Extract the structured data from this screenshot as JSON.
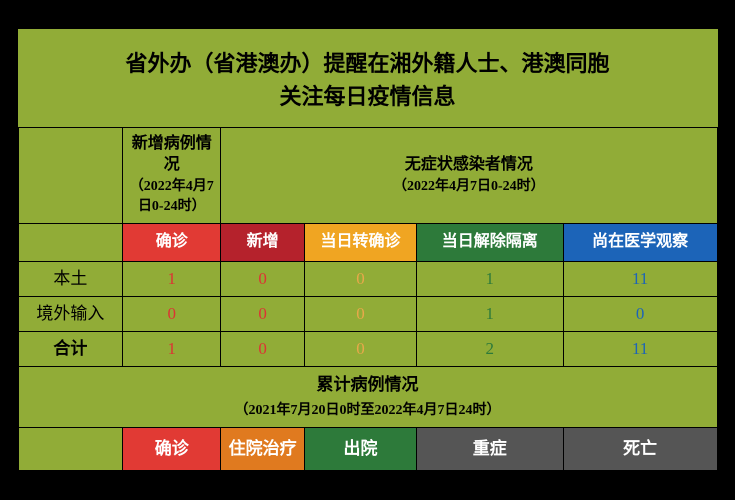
{
  "title_line1": "省外办（省港澳办）提醒在湘外籍人士、港澳同胞",
  "title_line2": "关注每日疫情信息",
  "group_headers": {
    "new_cases": {
      "title": "新增病例情况",
      "period": "（2022年4月7日0-24时）"
    },
    "asymptomatic": {
      "title": "无症状感染者情况",
      "period": "（2022年4月7日0-24时）"
    }
  },
  "columns": {
    "confirmed": {
      "label": "确诊",
      "bg": "#e13a34"
    },
    "new": {
      "label": "新增",
      "bg": "#b5222c"
    },
    "to_confirmed": {
      "label": "当日转确诊",
      "bg": "#f0a522"
    },
    "released": {
      "label": "当日解除隔离",
      "bg": "#2d7a3a"
    },
    "observation": {
      "label": "尚在医学观察",
      "bg": "#1c64b8"
    }
  },
  "rows": [
    {
      "label": "本土",
      "bold": false,
      "cells": [
        {
          "v": "1",
          "c": "#d33"
        },
        {
          "v": "0",
          "c": "#d33"
        },
        {
          "v": "0",
          "c": "#e8a84a"
        },
        {
          "v": "1",
          "c": "#2d7a3a"
        },
        {
          "v": "11",
          "c": "#1c64b8"
        }
      ]
    },
    {
      "label": "境外输入",
      "bold": false,
      "cells": [
        {
          "v": "0",
          "c": "#d33"
        },
        {
          "v": "0",
          "c": "#d33"
        },
        {
          "v": "0",
          "c": "#e8a84a"
        },
        {
          "v": "1",
          "c": "#2d7a3a"
        },
        {
          "v": "0",
          "c": "#1c64b8"
        }
      ]
    },
    {
      "label": "合计",
      "bold": true,
      "cells": [
        {
          "v": "1",
          "c": "#d33"
        },
        {
          "v": "0",
          "c": "#d33"
        },
        {
          "v": "0",
          "c": "#e8a84a"
        },
        {
          "v": "2",
          "c": "#2d7a3a"
        },
        {
          "v": "11",
          "c": "#1c64b8"
        }
      ]
    }
  ],
  "cumulative": {
    "title": "累计病例情况",
    "period": "（2021年7月20日0时至2022年4月7日24时）",
    "columns": [
      {
        "label": "确诊",
        "bg": "#e13a34"
      },
      {
        "label": "住院治疗",
        "bg": "#e07a1f"
      },
      {
        "label": "出院",
        "bg": "#2d7a3a"
      },
      {
        "label": "重症",
        "bg": "#555555"
      },
      {
        "label": "死亡",
        "bg": "#555555"
      }
    ]
  }
}
